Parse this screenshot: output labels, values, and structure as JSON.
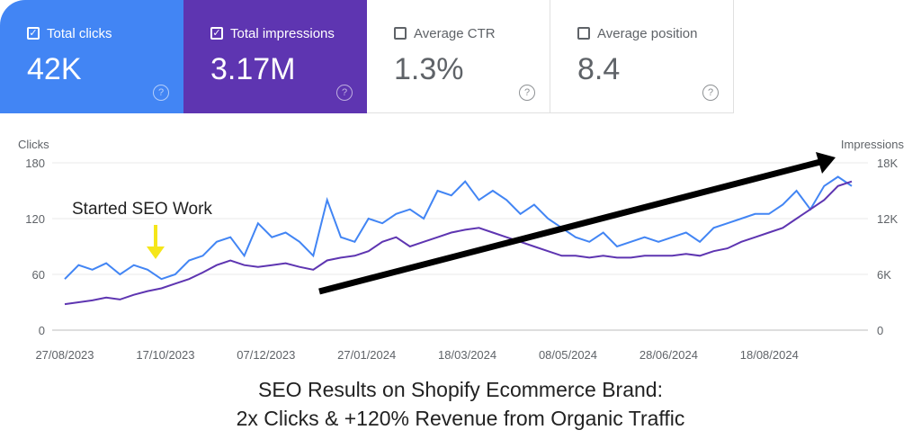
{
  "metrics": [
    {
      "label": "Total clicks",
      "value": "42K",
      "checked": true,
      "color": "#4285f4"
    },
    {
      "label": "Total impressions",
      "value": "3.17M",
      "checked": true,
      "color": "#5e35b1"
    },
    {
      "label": "Average CTR",
      "value": "1.3%",
      "checked": false
    },
    {
      "label": "Average position",
      "value": "8.4",
      "checked": false
    }
  ],
  "chart_data": {
    "type": "line",
    "ylabel_left": "Clicks",
    "ylabel_right": "Impressions",
    "ylim_left": [
      0,
      180
    ],
    "ylim_right": [
      0,
      18000
    ],
    "yticks_left": [
      "0",
      "60",
      "120",
      "180"
    ],
    "yticks_right": [
      "0",
      "6K",
      "12K",
      "18K"
    ],
    "xticks": [
      "27/08/2023",
      "17/10/2023",
      "07/12/2023",
      "27/01/2024",
      "18/03/2024",
      "08/05/2024",
      "28/06/2024",
      "18/08/2024"
    ],
    "grid": true,
    "x": [
      "2023-08-27",
      "2023-09-03",
      "2023-09-10",
      "2023-09-17",
      "2023-09-24",
      "2023-10-01",
      "2023-10-08",
      "2023-10-15",
      "2023-10-22",
      "2023-10-29",
      "2023-11-05",
      "2023-11-12",
      "2023-11-19",
      "2023-11-26",
      "2023-12-03",
      "2023-12-10",
      "2023-12-17",
      "2023-12-24",
      "2023-12-31",
      "2024-01-07",
      "2024-01-14",
      "2024-01-21",
      "2024-01-28",
      "2024-02-04",
      "2024-02-11",
      "2024-02-18",
      "2024-02-25",
      "2024-03-03",
      "2024-03-10",
      "2024-03-17",
      "2024-03-24",
      "2024-03-31",
      "2024-04-07",
      "2024-04-14",
      "2024-04-21",
      "2024-04-28",
      "2024-05-05",
      "2024-05-12",
      "2024-05-19",
      "2024-05-26",
      "2024-06-02",
      "2024-06-09",
      "2024-06-16",
      "2024-06-23",
      "2024-06-30",
      "2024-07-07",
      "2024-07-14",
      "2024-07-21",
      "2024-07-28",
      "2024-08-04",
      "2024-08-11",
      "2024-08-18",
      "2024-08-25",
      "2024-09-01",
      "2024-09-08",
      "2024-09-15",
      "2024-09-22",
      "2024-09-29"
    ],
    "series": [
      {
        "name": "Clicks",
        "axis": "left",
        "color": "#4285f4",
        "values": [
          55,
          70,
          65,
          72,
          60,
          70,
          65,
          55,
          60,
          75,
          80,
          95,
          100,
          80,
          115,
          100,
          105,
          95,
          80,
          140,
          100,
          95,
          120,
          115,
          125,
          130,
          120,
          150,
          145,
          160,
          140,
          150,
          140,
          125,
          135,
          120,
          110,
          100,
          95,
          105,
          90,
          95,
          100,
          95,
          100,
          105,
          95,
          110,
          115,
          120,
          125,
          125,
          135,
          150,
          130,
          155,
          165,
          155
        ]
      },
      {
        "name": "Impressions",
        "axis": "right",
        "color": "#5e35b1",
        "values": [
          2800,
          3000,
          3200,
          3500,
          3300,
          3800,
          4200,
          4500,
          5000,
          5500,
          6200,
          7000,
          7500,
          7000,
          6800,
          7000,
          7200,
          6800,
          6500,
          7500,
          7800,
          8000,
          8500,
          9500,
          10000,
          9000,
          9500,
          10000,
          10500,
          10800,
          11000,
          10500,
          10000,
          9500,
          9000,
          8500,
          8000,
          8000,
          7800,
          8000,
          7800,
          7800,
          8000,
          8000,
          8000,
          8200,
          8000,
          8500,
          8800,
          9500,
          10000,
          10500,
          11000,
          12000,
          13000,
          14000,
          15500,
          16000
        ]
      }
    ],
    "annotations": {
      "start_label": "Started SEO Work"
    }
  },
  "caption": {
    "line1": "SEO Results on Shopify Ecommerce Brand:",
    "line2": "2x Clicks & +120% Revenue from Organic Traffic"
  }
}
